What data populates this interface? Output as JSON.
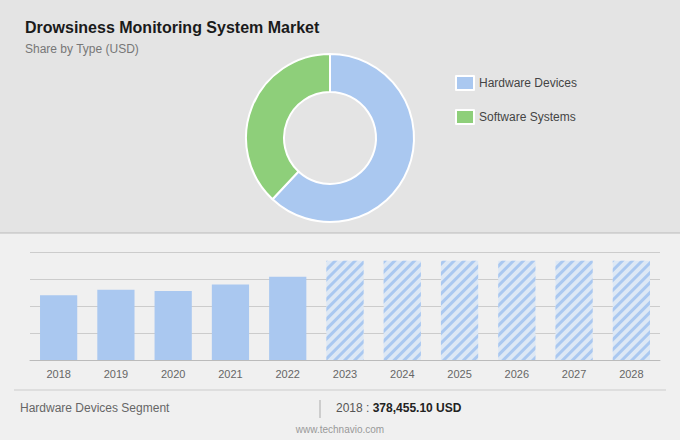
{
  "chart_data": [
    {
      "type": "donut",
      "title": "Drowsiness Monitoring System Market",
      "subtitle": "Share by Type (USD)",
      "categories": [
        "Hardware Devices",
        "Software Systems"
      ],
      "values": [
        62,
        38
      ],
      "colors": [
        "#aac8f0",
        "#8ecf7a"
      ],
      "legend": "right"
    },
    {
      "type": "bar",
      "categories": [
        "2018",
        "2019",
        "2020",
        "2021",
        "2022",
        "2023",
        "2024",
        "2025",
        "2026",
        "2027",
        "2028"
      ],
      "values": [
        0.6,
        0.65,
        0.64,
        0.7,
        0.77,
        null,
        null,
        null,
        null,
        null,
        null
      ],
      "forecast_values": [
        null,
        null,
        null,
        null,
        null,
        0.92,
        0.92,
        0.92,
        0.92,
        0.92,
        0.92
      ],
      "color": "#aac8f0",
      "ylim": [
        0,
        1.0
      ],
      "yticks": [
        0,
        0.25,
        0.5,
        0.75,
        1.0
      ],
      "grid": true,
      "tick_labels": "x",
      "annotations": [
        "Hardware Devices Segment",
        "2018 :",
        "378,455.10 USD",
        "www.technavio.com"
      ]
    }
  ]
}
